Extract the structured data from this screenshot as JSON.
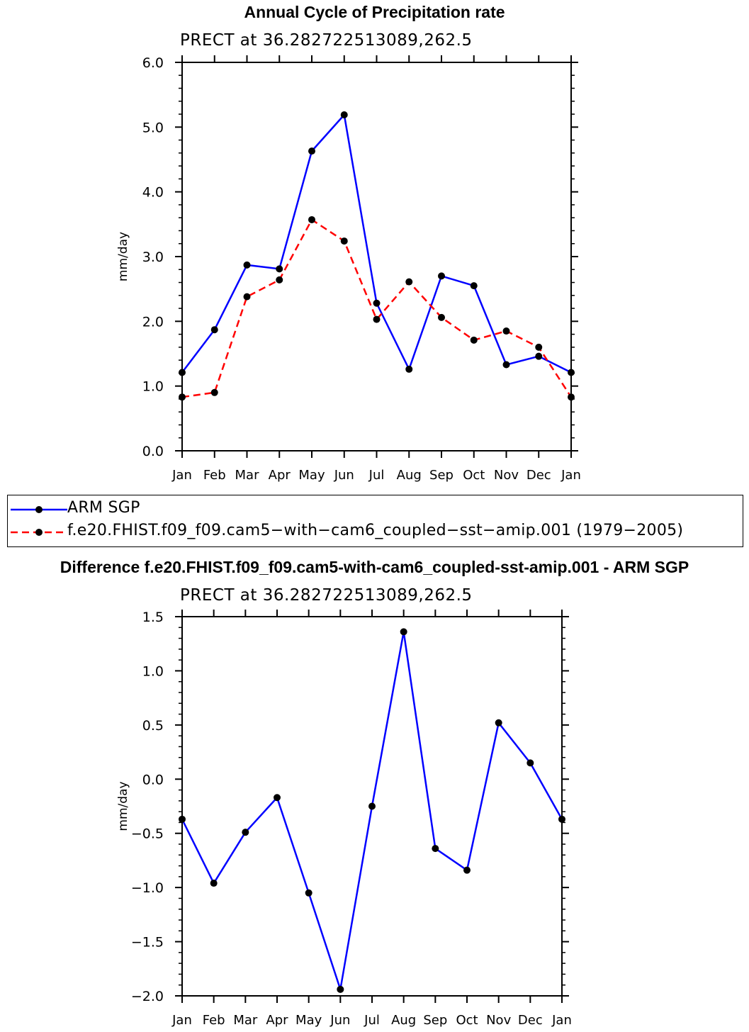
{
  "chart_data": [
    {
      "type": "line",
      "title": "Annual Cycle of Precipitation rate",
      "subtitle": "PRECT at 36.282722513089,262.5",
      "ylabel": "mm/day",
      "xlabel": "",
      "ylim": [
        0,
        6
      ],
      "yticks": [
        "0.0",
        "1.0",
        "2.0",
        "3.0",
        "4.0",
        "5.0",
        "6.0"
      ],
      "categories": [
        "Jan",
        "Feb",
        "Mar",
        "Apr",
        "May",
        "Jun",
        "Jul",
        "Aug",
        "Sep",
        "Oct",
        "Nov",
        "Dec",
        "Jan"
      ],
      "series": [
        {
          "name": "ARM SGP",
          "color": "#0000ff",
          "dash": "solid",
          "values": [
            1.21,
            1.87,
            2.87,
            2.81,
            4.63,
            5.19,
            2.28,
            1.26,
            2.7,
            2.55,
            1.33,
            1.46,
            1.21
          ]
        },
        {
          "name": "f.e20.FHIST.f09_f09.cam5-with-cam6_coupled-sst-amip.001 (1979-2005)",
          "color": "#ff0000",
          "dash": "dashed",
          "values": [
            0.83,
            0.9,
            2.38,
            2.64,
            3.57,
            3.24,
            2.03,
            2.61,
            2.06,
            1.71,
            1.85,
            1.6,
            0.83
          ]
        }
      ]
    },
    {
      "type": "line",
      "title": "Difference f.e20.FHIST.f09_f09.cam5-with-cam6_coupled-sst-amip.001 - ARM SGP",
      "subtitle": "PRECT at 36.282722513089,262.5",
      "ylabel": "mm/day",
      "xlabel": "",
      "ylim": [
        -2,
        1.5
      ],
      "yticks": [
        "−2.0",
        "−1.5",
        "−1.0",
        "−0.5",
        "0.0",
        "0.5",
        "1.0",
        "1.5"
      ],
      "categories": [
        "Jan",
        "Feb",
        "Mar",
        "Apr",
        "May",
        "Jun",
        "Jul",
        "Aug",
        "Sep",
        "Oct",
        "Nov",
        "Dec",
        "Jan"
      ],
      "series": [
        {
          "name": "Difference",
          "color": "#0000ff",
          "dash": "solid",
          "values": [
            -0.37,
            -0.96,
            -0.49,
            -0.17,
            -1.05,
            -1.94,
            -0.25,
            1.36,
            -0.64,
            -0.84,
            0.52,
            0.15,
            -0.37
          ]
        }
      ]
    }
  ],
  "legend": {
    "items": [
      {
        "label": "ARM SGP"
      },
      {
        "label": "f.e20.FHIST.f09_f09.cam5−with−cam6_coupled−sst−amip.001 (1979−2005)"
      }
    ]
  }
}
